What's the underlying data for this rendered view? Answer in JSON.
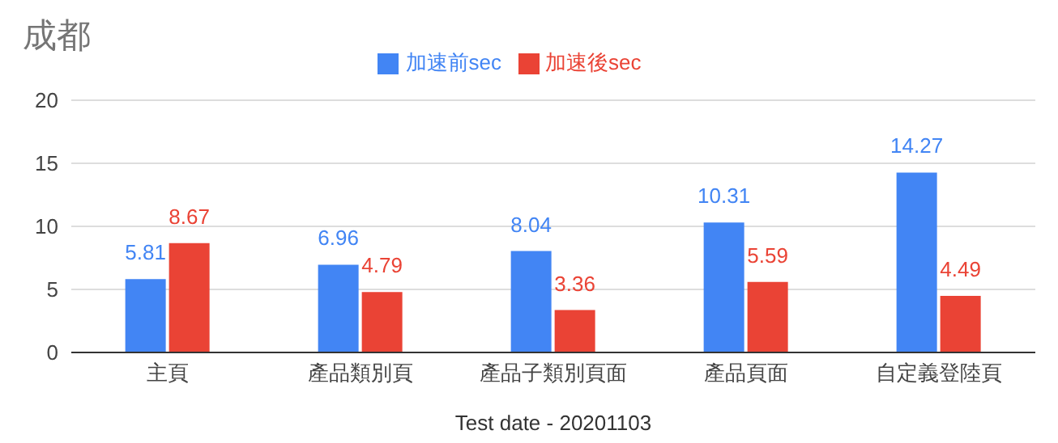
{
  "chart_data": {
    "type": "bar",
    "title": "成都",
    "xlabel": "Test date - 20201103",
    "categories": [
      "主頁",
      "產品類別頁",
      "產品子類別頁面",
      "產品頁面",
      "自定義登陸頁"
    ],
    "series": [
      {
        "name": "加速前sec",
        "color": "#4285f4",
        "values": [
          5.81,
          6.96,
          8.04,
          10.31,
          14.27
        ]
      },
      {
        "name": "加速後sec",
        "color": "#ea4335",
        "values": [
          8.67,
          4.79,
          3.36,
          5.59,
          4.49
        ]
      }
    ],
    "ylim": [
      0,
      20
    ],
    "yticks": [
      0,
      5,
      10,
      15,
      20
    ],
    "grid": "y",
    "legend": "top",
    "data_labels": true
  }
}
